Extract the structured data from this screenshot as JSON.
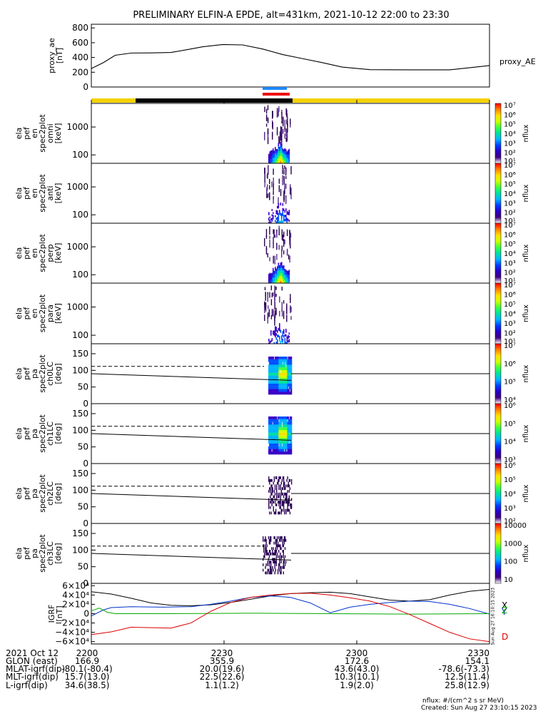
{
  "title": "PRELIMINARY ELFIN-A EPDE, alt=431km, 2021-10-12 22:00 to 23:30",
  "created": "Created: Sun Aug 27 23:10:15 2023",
  "nflux_units": "nflux: #/(cm^2 s sr MeV)",
  "side_stamp": "Sun Aug 27 16:10:15 2023",
  "colors": {
    "ae": "#000000",
    "bar_yellow": "#f5d200",
    "bar_black": "#000000",
    "blue_mark": "#1e88ff",
    "red_mark": "#ee0000",
    "igrf_x": "#000000",
    "igrf_y": "#0033cc",
    "igrf_z": "#00aa00",
    "igrf_d": "#dd0000"
  },
  "chart_data": [
    {
      "type": "line",
      "name": "proxy_ae",
      "ylabel": [
        "proxy_ae",
        "[nT]"
      ],
      "right_label": "proxy_AE",
      "ylim": [
        0,
        850
      ],
      "yticks": [
        "800",
        "600",
        "400",
        "200",
        "0"
      ],
      "ytick_vals": [
        800,
        600,
        400,
        200,
        0
      ],
      "x": [
        0,
        3,
        6,
        10,
        15,
        20,
        24,
        28,
        33,
        38,
        43,
        48,
        53,
        58,
        63,
        70,
        80,
        90,
        100
      ],
      "values": [
        250,
        330,
        430,
        460,
        462,
        468,
        505,
        545,
        575,
        570,
        515,
        440,
        385,
        330,
        270,
        235,
        232,
        232,
        290
      ]
    },
    {
      "type": "heatmap",
      "name": "en-omni",
      "ylabel": [
        "ela",
        "pef",
        "en",
        "spec2plot",
        "omni",
        "[keV]"
      ],
      "yticks": [
        "1000",
        "100"
      ],
      "ylog": true,
      "ylim": [
        50,
        7000
      ]
    },
    {
      "type": "heatmap",
      "name": "en-anti",
      "ylabel": [
        "ela",
        "pef",
        "en",
        "spec2plot",
        "anti",
        "[keV]"
      ],
      "yticks": [
        "1000",
        "100"
      ],
      "ylog": true,
      "ylim": [
        50,
        7000
      ]
    },
    {
      "type": "heatmap",
      "name": "en-perp",
      "ylabel": [
        "ela",
        "pef",
        "en",
        "spec2plot",
        "perp",
        "[keV]"
      ],
      "yticks": [
        "1000",
        "100"
      ],
      "ylog": true,
      "ylim": [
        50,
        7000
      ]
    },
    {
      "type": "heatmap",
      "name": "en-para",
      "ylabel": [
        "ela",
        "pef",
        "en",
        "spec2plot",
        "para",
        "[keV]"
      ],
      "yticks": [
        "1000",
        "100"
      ],
      "ylog": true,
      "ylim": [
        50,
        7000
      ]
    },
    {
      "type": "heatmap",
      "name": "pa-ch0LC",
      "ylabel": [
        "ela",
        "pef",
        "pa",
        "spec2plot",
        "ch0LC",
        "[deg]"
      ],
      "yticks": [
        "150",
        "100",
        "50",
        "0"
      ],
      "ylim": [
        0,
        180
      ]
    },
    {
      "type": "heatmap",
      "name": "pa-ch1LC",
      "ylabel": [
        "ela",
        "pef",
        "pa",
        "spec2plot",
        "ch1LC",
        "[deg]"
      ],
      "yticks": [
        "150",
        "100",
        "50",
        "0"
      ],
      "ylim": [
        0,
        180
      ]
    },
    {
      "type": "heatmap",
      "name": "pa-ch2LC",
      "ylabel": [
        "ela",
        "pef",
        "pa",
        "spec2plot",
        "ch2LC",
        "[deg]"
      ],
      "yticks": [
        "150",
        "100",
        "50",
        "0"
      ],
      "ylim": [
        0,
        180
      ]
    },
    {
      "type": "heatmap",
      "name": "pa-ch3LC",
      "ylabel": [
        "ela",
        "pef",
        "pa",
        "spec2plot",
        "ch3LC",
        "[deg]"
      ],
      "yticks": [
        "150",
        "100",
        "50",
        "0"
      ],
      "ylim": [
        0,
        180
      ]
    },
    {
      "type": "line",
      "name": "igrf",
      "ylabel": [
        "IGRF",
        "[nT]"
      ],
      "ylim": [
        -6.5,
        6.5
      ],
      "yticks": [
        "6×10⁴",
        "4×10⁴",
        "2×10⁴",
        "0",
        "−2×10⁴",
        "−4×10⁴",
        "−6×10⁴"
      ],
      "series": [
        {
          "name": "X",
          "x": [
            0,
            5,
            10,
            15,
            20,
            25,
            30,
            35,
            40,
            45,
            50,
            55,
            60,
            65,
            70,
            75,
            80,
            85,
            90,
            95,
            100
          ],
          "values": [
            4.7,
            4.2,
            3.3,
            2.3,
            1.8,
            1.7,
            1.9,
            2.4,
            3.1,
            3.8,
            4.3,
            4.5,
            4.6,
            4.3,
            3.6,
            2.9,
            2.7,
            3.0,
            4.0,
            4.8,
            5.2
          ]
        },
        {
          "name": "Y",
          "x": [
            0,
            3,
            5,
            10,
            18,
            25,
            30,
            35,
            40,
            45,
            50,
            55,
            60,
            65,
            70,
            75,
            80,
            85,
            90,
            95,
            100
          ],
          "values": [
            -0.5,
            0.8,
            1.3,
            1.5,
            1.4,
            1.5,
            2.0,
            2.7,
            3.5,
            3.8,
            3.5,
            2.3,
            0.2,
            1.4,
            2.0,
            2.4,
            2.7,
            2.6,
            2.0,
            1.1,
            -0.1
          ]
        },
        {
          "name": "Z",
          "x": [
            0,
            2,
            4,
            6,
            20,
            40,
            60,
            80,
            100
          ],
          "values": [
            0.6,
            1.2,
            0.3,
            0.0,
            0.0,
            0.1,
            0.0,
            -0.1,
            0.0
          ]
        },
        {
          "name": "D",
          "x": [
            0,
            5,
            10,
            15,
            20,
            25,
            30,
            35,
            40,
            45,
            50,
            55,
            60,
            65,
            70,
            75,
            80,
            85,
            90,
            95,
            100
          ],
          "values": [
            -4.5,
            -3.9,
            -2.9,
            -3.0,
            -3.1,
            -2.0,
            0.5,
            2.4,
            3.5,
            4.0,
            4.3,
            4.4,
            4.0,
            3.4,
            2.7,
            1.5,
            -0.2,
            -2.1,
            -4.0,
            -5.4,
            -6.0
          ]
        }
      ],
      "legend": [
        "X",
        "Y",
        "Z",
        "D"
      ]
    }
  ],
  "colorbars": [
    {
      "labels": [
        "10⁷",
        "10⁶",
        "10⁵",
        "10⁴",
        "10³",
        "10²",
        "10¹"
      ],
      "unit": "nflux"
    },
    {
      "labels": [
        "10⁷",
        "10⁶",
        "10⁵",
        "10⁴",
        "10³",
        "10²",
        "10¹"
      ],
      "unit": "nflux"
    },
    {
      "labels": [
        "10⁷",
        "10⁶",
        "10⁵",
        "10⁴",
        "10³",
        "10²",
        "10¹"
      ],
      "unit": "nflux"
    },
    {
      "labels": [
        "10⁷",
        "10⁶",
        "10⁵",
        "10⁴",
        "10³",
        "10²",
        "10¹"
      ],
      "unit": "nflux"
    },
    {
      "labels": [
        "10⁷",
        "10⁶",
        "10⁵",
        "10⁴"
      ],
      "unit": "nflux"
    },
    {
      "labels": [
        "10⁶",
        "10⁵",
        "10⁴",
        "10³"
      ],
      "unit": "nflux"
    },
    {
      "labels": [
        "10⁶",
        "10⁵",
        "10⁴",
        "10³",
        "10²"
      ],
      "unit": "nflux"
    },
    {
      "labels": [
        "10000",
        "1000",
        "100",
        "10"
      ],
      "unit": "nflux"
    }
  ],
  "footer": {
    "rows": [
      [
        "2021 Oct 12",
        "2200",
        "2230",
        "2300",
        "2330"
      ],
      [
        "GLON (east)",
        "166.9",
        "355.9",
        "172.6",
        "154.1"
      ],
      [
        "MLAT-igrf(dip)",
        "-80.1(-80.4)",
        "20.0(19.6)",
        "43.6(43.0)",
        "-78.6(-73.3)"
      ],
      [
        "MLT-igrf(dip)",
        "15.7(13.0)",
        "22.5(22.6)",
        "10.3(10.1)",
        "12.5(11.4)"
      ],
      [
        "L-igrf(dip)",
        "34.6(38.5)",
        "1.1(1.2)",
        "1.9(2.0)",
        "25.8(12.9)"
      ]
    ]
  }
}
